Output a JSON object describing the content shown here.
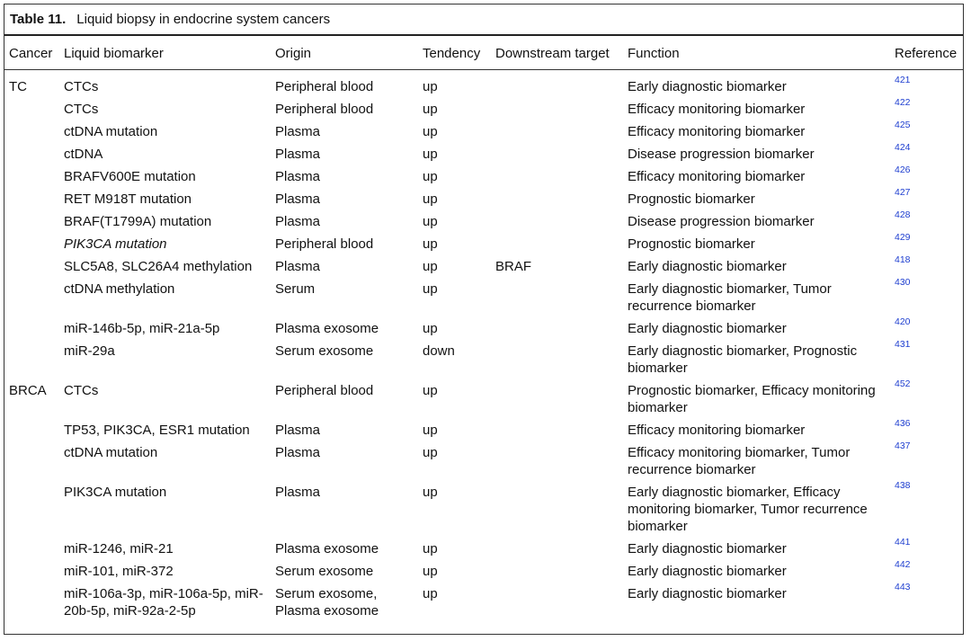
{
  "table": {
    "label": "Table 11.",
    "title": "Liquid biopsy in endocrine system cancers",
    "columns": [
      "Cancer",
      "Liquid biomarker",
      "Origin",
      "Tendency",
      "Downstream target",
      "Function",
      "Reference"
    ],
    "rows": [
      {
        "cancer": "TC",
        "biomarker": "CTCs",
        "origin": "Peripheral blood",
        "tendency": "up",
        "function": "Early diagnostic biomarker",
        "reference": 421
      },
      {
        "biomarker": "CTCs",
        "origin": "Peripheral blood",
        "tendency": "up",
        "function": "Efficacy monitoring biomarker",
        "reference": 422
      },
      {
        "biomarker": "ctDNA mutation",
        "origin": "Plasma",
        "tendency": "up",
        "function": "Efficacy monitoring biomarker",
        "reference": 425
      },
      {
        "biomarker": "ctDNA",
        "origin": "Plasma",
        "tendency": "up",
        "function": "Disease progression biomarker",
        "reference": 424
      },
      {
        "biomarker": "BRAFV600E mutation",
        "origin": "Plasma",
        "tendency": "up",
        "function": "Efficacy monitoring biomarker",
        "reference": 426
      },
      {
        "biomarker": "RET M918T mutation",
        "origin": "Plasma",
        "tendency": "up",
        "function": "Prognostic biomarker",
        "reference": 427
      },
      {
        "biomarker": "BRAF(T1799A) mutation",
        "origin": "Plasma",
        "tendency": "up",
        "function": "Disease progression biomarker",
        "reference": 428
      },
      {
        "biomarker": "PIK3CA mutation",
        "origin": "Peripheral blood",
        "tendency": "up",
        "function": "Prognostic biomarker",
        "reference": 429
      },
      {
        "biomarker": "SLC5A8, SLC26A4 methylation",
        "origin": "Plasma",
        "tendency": "up",
        "target": "BRAF",
        "function": "Early diagnostic biomarker",
        "reference": 418
      },
      {
        "biomarker": "ctDNA methylation",
        "origin": "Serum",
        "tendency": "up",
        "function": "Early diagnostic biomarker, Tumor recurrence biomarker",
        "reference": 430
      },
      {
        "biomarker": "miR-146b-5p, miR-21a-5p",
        "origin": "Plasma exosome",
        "tendency": "up",
        "function": "Early diagnostic biomarker",
        "reference": 420
      },
      {
        "biomarker": "miR-29a",
        "origin": "Serum exosome",
        "tendency": "down",
        "function": "Early diagnostic biomarker, Prognostic biomarker",
        "reference": 431
      },
      {
        "cancer": "BRCA",
        "biomarker": "CTCs",
        "origin": "Peripheral blood",
        "tendency": "up",
        "function": "Prognostic biomarker, Efficacy monitoring biomarker",
        "reference": 452
      },
      {
        "biomarker": "TP53, PIK3CA, ESR1 mutation",
        "origin": "Plasma",
        "tendency": "up",
        "function": "Efficacy monitoring biomarker",
        "reference": 436
      },
      {
        "biomarker": "ctDNA mutation",
        "origin": "Plasma",
        "tendency": "up",
        "function": "Efficacy monitoring biomarker, Tumor recurrence biomarker",
        "reference": 437
      },
      {
        "biomarker": "PIK3CA mutation",
        "origin": "Plasma",
        "tendency": "up",
        "function": "Early diagnostic biomarker, Efficacy monitoring biomarker, Tumor recurrence biomarker",
        "reference": 438
      },
      {
        "biomarker": "miR-1246, miR-21",
        "origin": "Plasma exosome",
        "tendency": "up",
        "function": "Early diagnostic biomarker",
        "reference": 441
      },
      {
        "biomarker": "miR-101, miR-372",
        "origin": "Serum exosome",
        "tendency": "up",
        "function": "Early diagnostic biomarker",
        "reference": 442
      },
      {
        "biomarker": "miR-106a-3p, miR-106a-5p, miR-20b-5p, miR-92a-2-5p",
        "origin": "Serum exosome, Plasma exosome",
        "tendency": "up",
        "function": "Early diagnostic biomarker",
        "reference": 443
      }
    ]
  }
}
